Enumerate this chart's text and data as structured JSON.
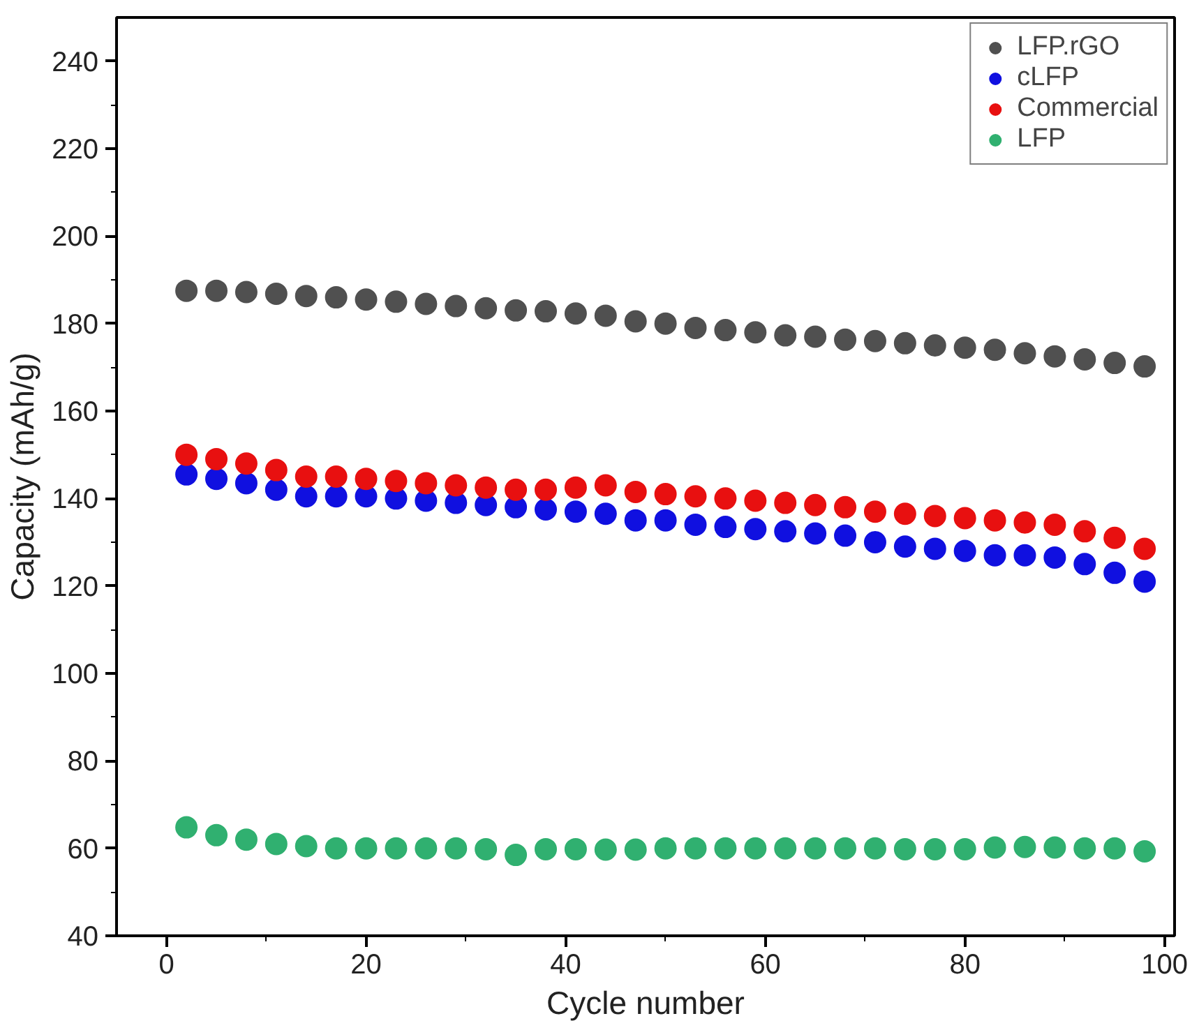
{
  "chart_data": {
    "type": "scatter",
    "xlabel": "Cycle number",
    "ylabel": "Capacity (mAh/g)",
    "x": [
      2,
      5,
      8,
      11,
      14,
      17,
      20,
      23,
      26,
      29,
      32,
      35,
      38,
      41,
      44,
      47,
      50,
      53,
      56,
      59,
      62,
      65,
      68,
      71,
      74,
      77,
      80,
      83,
      86,
      89,
      92,
      95,
      98
    ],
    "series": [
      {
        "name": "LFP.rGO",
        "color": "#505050",
        "values": [
          187.5,
          187.5,
          187.2,
          186.8,
          186.3,
          186,
          185.5,
          185,
          184.5,
          184,
          183.5,
          183,
          182.8,
          182.3,
          181.8,
          180.5,
          180,
          179,
          178.5,
          178,
          177.3,
          177,
          176.3,
          176,
          175.5,
          175,
          174.5,
          174,
          173.2,
          172.5,
          171.8,
          171,
          170.2
        ]
      },
      {
        "name": "cLFP",
        "color": "#1010e0",
        "values": [
          145.5,
          144.5,
          143.5,
          142,
          140.5,
          140.5,
          140.5,
          140,
          139.5,
          139,
          138.5,
          138,
          137.5,
          137,
          136.5,
          135,
          135,
          134,
          133.5,
          133,
          132.5,
          132,
          131.5,
          130,
          129,
          128.5,
          128,
          127,
          127,
          126.5,
          125,
          123,
          121
        ]
      },
      {
        "name": "Commercial",
        "color": "#e81010",
        "values": [
          150,
          149,
          148,
          146.5,
          145,
          145,
          144.5,
          144,
          143.5,
          143,
          142.5,
          142,
          142,
          142.5,
          143,
          141.5,
          141,
          140.5,
          140,
          139.5,
          139,
          138.5,
          138,
          137,
          136.5,
          136,
          135.5,
          135,
          134.5,
          134,
          132.5,
          131,
          128.5
        ]
      },
      {
        "name": "LFP",
        "color": "#30b070",
        "values": [
          64.8,
          63,
          62,
          61,
          60.5,
          60,
          60,
          60,
          60,
          60,
          59.8,
          58.5,
          59.8,
          59.8,
          59.7,
          59.7,
          60,
          60,
          60,
          60,
          60,
          60,
          60,
          60,
          59.8,
          59.8,
          59.8,
          60.2,
          60.3,
          60.2,
          60,
          60,
          59.3
        ]
      }
    ],
    "xlim": [
      -5,
      101
    ],
    "xticks": [
      0,
      20,
      40,
      60,
      80,
      100
    ],
    "ylim": [
      40,
      250
    ],
    "yticks": [
      40,
      60,
      80,
      100,
      120,
      140,
      160,
      180,
      200,
      220,
      240
    ],
    "marker": "circle",
    "grid": false,
    "legend": "top right"
  }
}
